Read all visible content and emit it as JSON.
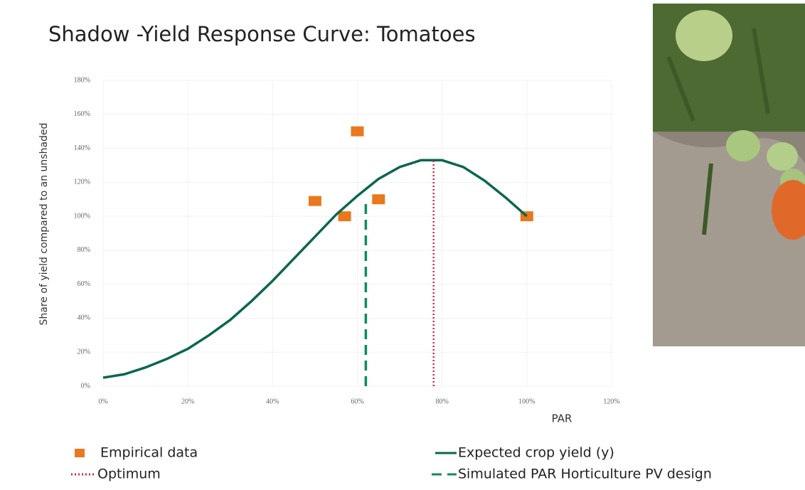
{
  "chart_data": {
    "type": "combo",
    "title": "Shadow -Yield Response Curve: Tomatoes",
    "x_label": "PAR",
    "y_label": "Share of yield compared to an unshaded",
    "xlim": [
      0,
      120
    ],
    "ylim": [
      0,
      180
    ],
    "xticks": [
      {
        "value": 0,
        "label": "0%"
      },
      {
        "value": 20,
        "label": "20%"
      },
      {
        "value": 40,
        "label": "40%"
      },
      {
        "value": 60,
        "label": "60%"
      },
      {
        "value": 80,
        "label": "80%"
      },
      {
        "value": 100,
        "label": "100%"
      },
      {
        "value": 120,
        "label": "120%"
      }
    ],
    "yticks": [
      {
        "value": 0,
        "label": "0%"
      },
      {
        "value": 20,
        "label": "20%"
      },
      {
        "value": 40,
        "label": "40%"
      },
      {
        "value": 60,
        "label": "60%"
      },
      {
        "value": 80,
        "label": "80%"
      },
      {
        "value": 100,
        "label": "100%"
      },
      {
        "value": 120,
        "label": "120%"
      },
      {
        "value": 140,
        "label": "140%"
      },
      {
        "value": 160,
        "label": "160%"
      },
      {
        "value": 180,
        "label": "180%"
      }
    ],
    "grid": true,
    "legend": "bottom",
    "series": [
      {
        "name": "Empirical data",
        "type": "scatter",
        "color": "#e9781e",
        "x": [
          50,
          57,
          60,
          65,
          100
        ],
        "values": [
          109,
          100,
          150,
          110,
          100
        ]
      },
      {
        "name": "Expected crop yield (y)",
        "type": "line",
        "style": "solid",
        "color": "#0b6650",
        "x": [
          0,
          5,
          10,
          15,
          20,
          25,
          30,
          35,
          40,
          45,
          50,
          55,
          60,
          65,
          70,
          75,
          80,
          85,
          90,
          95,
          100
        ],
        "values": [
          5,
          7,
          11,
          16,
          22,
          30,
          39,
          50,
          62,
          75,
          88,
          101,
          112,
          122,
          129,
          133,
          133,
          129,
          121,
          111,
          100
        ]
      },
      {
        "name": "Optimum",
        "type": "line",
        "style": "dotted",
        "color": "#d42a4c",
        "x": [
          78,
          78
        ],
        "values": [
          0,
          133
        ]
      },
      {
        "name": "Simulated PAR Horticulture PV design",
        "type": "line",
        "style": "dashed",
        "color": "#118a5c",
        "x": [
          62,
          62
        ],
        "values": [
          0,
          108
        ]
      }
    ]
  }
}
